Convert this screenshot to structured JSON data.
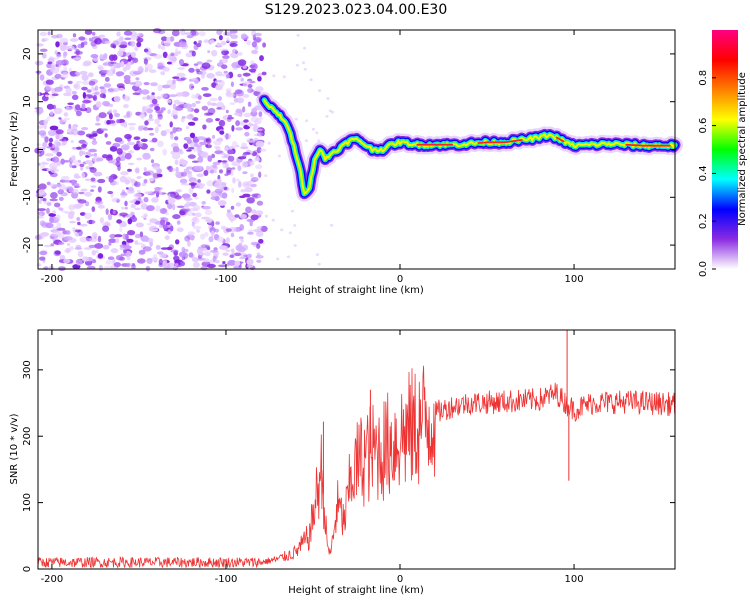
{
  "title": "S129.2023.023.04.00.E30",
  "chart_data": [
    {
      "type": "heatmap",
      "xlabel": "Height of straight line (km)",
      "ylabel": "Frequency (Hz)",
      "xlim": [
        -208,
        158
      ],
      "ylim": [
        -25,
        25
      ],
      "xticks": [
        -200,
        -100,
        0,
        100
      ],
      "yticks": [
        -20,
        -10,
        0,
        10,
        20
      ],
      "colorbar": {
        "label": "Normalized spectral amplitude",
        "range": [
          0,
          1
        ],
        "ticks": [
          "0.0",
          "0.2",
          "0.4",
          "0.6",
          "0.8"
        ],
        "colormap": [
          "#ffffff",
          "#8a2be2",
          "#0000ff",
          "#00ffff",
          "#00ff00",
          "#ffff00",
          "#ff8000",
          "#ff0000",
          "#ff0080"
        ]
      },
      "ridge": {
        "x": [
          -78,
          -72,
          -66,
          -62,
          -58,
          -55,
          -52,
          -49,
          -46,
          -43,
          -40,
          -36,
          -32,
          -28,
          -24,
          -20,
          -16,
          -10,
          -5,
          0,
          10,
          20,
          30,
          40,
          50,
          60,
          70,
          80,
          85,
          90,
          95,
          100,
          110,
          120,
          130,
          140,
          150,
          158
        ],
        "y": [
          10,
          8,
          6,
          2,
          -3,
          -9,
          -8,
          -2,
          0,
          -2,
          -1,
          0,
          1,
          2,
          2,
          1,
          0,
          0,
          1,
          1.5,
          1,
          1,
          1,
          1.2,
          1.5,
          1.5,
          2,
          2.5,
          3,
          2.5,
          1.5,
          0.8,
          1,
          1.2,
          1,
          0.8,
          0.8,
          0.8
        ]
      },
      "noise_region_x": [
        -208,
        -78
      ]
    },
    {
      "type": "line",
      "xlabel": "Height of straight line (km)",
      "ylabel": "SNR (10 * v/v)",
      "xlim": [
        -208,
        158
      ],
      "ylim": [
        0,
        360
      ],
      "xticks": [
        -200,
        -100,
        0,
        100
      ],
      "yticks": [
        0,
        100,
        200,
        300
      ],
      "color": "#ee3333",
      "envelope": {
        "x": [
          -208,
          -80,
          -70,
          -60,
          -52,
          -48,
          -45,
          -42,
          -40,
          -36,
          -32,
          -28,
          -24,
          -20,
          -16,
          -10,
          -5,
          0,
          10,
          20,
          30,
          40,
          60,
          80,
          90,
          95,
          100,
          110,
          130,
          158
        ],
        "y": [
          10,
          10,
          15,
          25,
          50,
          110,
          150,
          40,
          20,
          95,
          70,
          140,
          160,
          170,
          175,
          180,
          190,
          200,
          215,
          235,
          245,
          250,
          252,
          255,
          265,
          250,
          240,
          250,
          252,
          248
        ]
      },
      "spikes": [
        {
          "x": -44,
          "y": 222
        },
        {
          "x": -17,
          "y": 270
        },
        {
          "x": 96,
          "y": 360
        },
        {
          "x": 97,
          "y": 133
        }
      ]
    }
  ]
}
